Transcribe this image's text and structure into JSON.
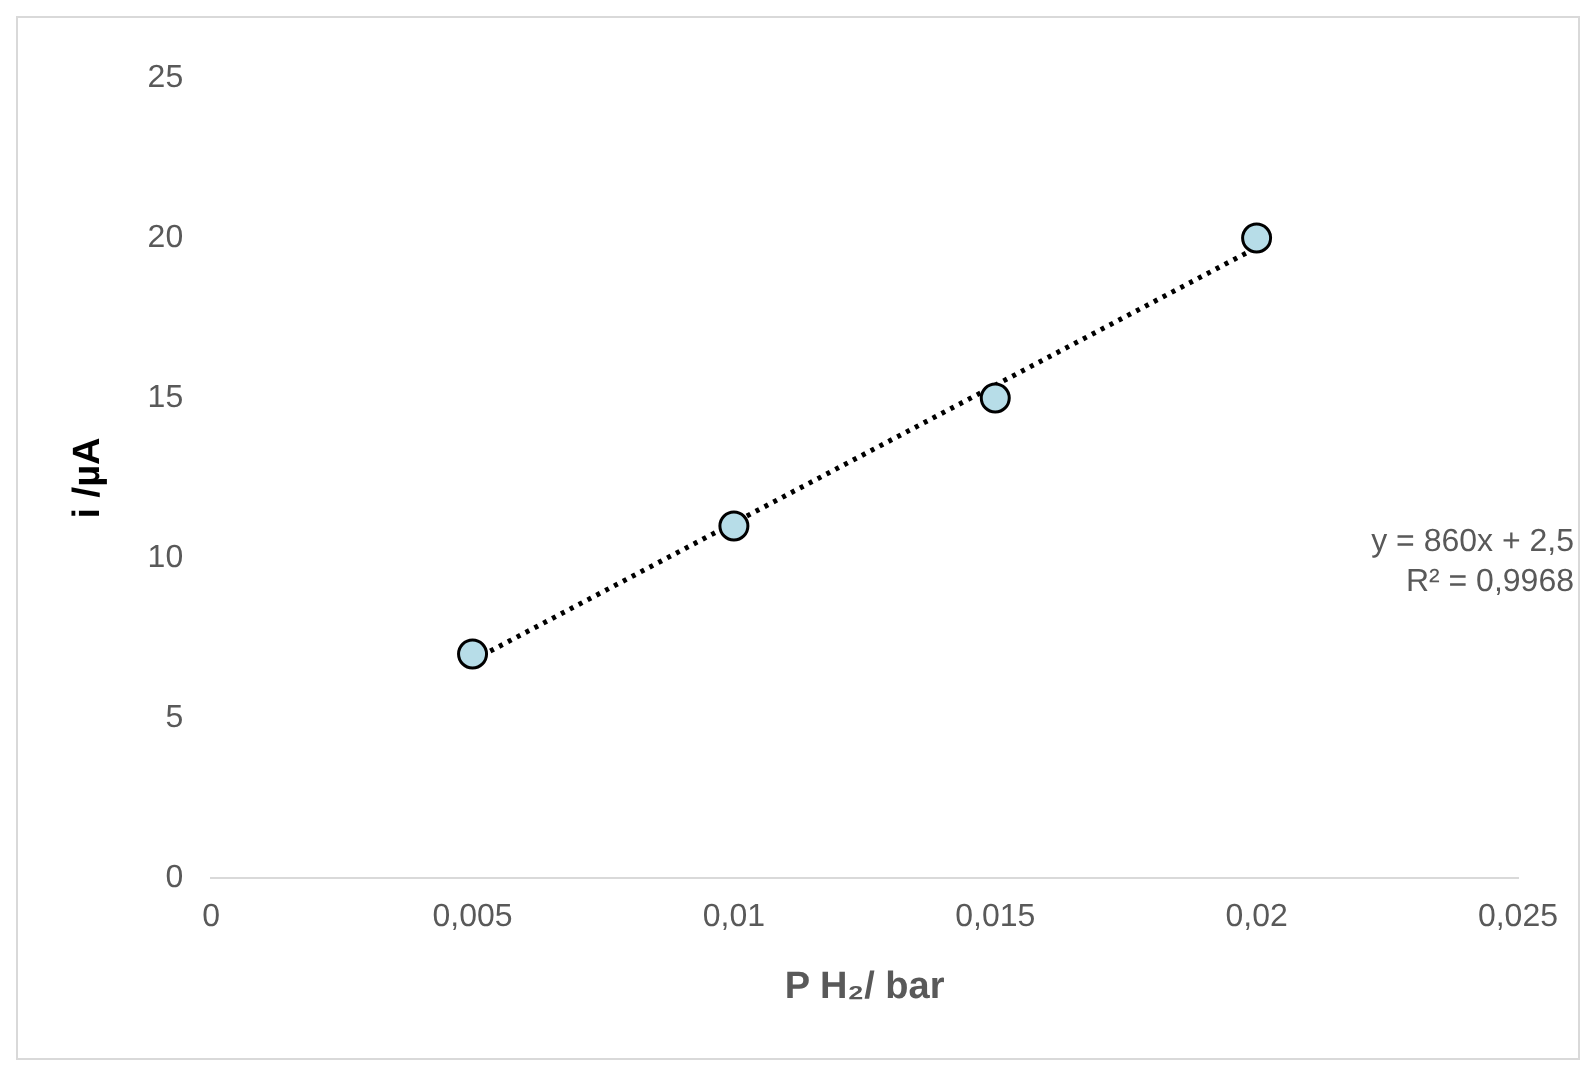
{
  "chart_data": {
    "type": "scatter",
    "xlabel": "P H₂/ bar",
    "ylabel": "i /µA",
    "x": [
      0.005,
      0.01,
      0.015,
      0.02
    ],
    "series": [
      {
        "color": "#b7dde8",
        "values": [
          7,
          11,
          15,
          20
        ],
        "marker": "circle"
      },
      {
        "type": "line",
        "color": "#000000",
        "x": [
          0.005,
          0.02
        ],
        "values": [
          6.8,
          19.7
        ],
        "line_style": "dotted",
        "marker": "none"
      }
    ],
    "xlim": [
      0,
      0.025
    ],
    "xticks": [
      0,
      {
        "value": 0.005,
        "label": "0,005"
      },
      {
        "value": 0.01,
        "label": "0,01"
      },
      {
        "value": 0.015,
        "label": "0,015"
      },
      {
        "value": 0.02,
        "label": "0,02"
      },
      {
        "value": 0.025,
        "label": "0,025"
      }
    ],
    "ylim": [
      0,
      25
    ],
    "yticks": [
      0,
      5,
      10,
      15,
      20,
      25
    ],
    "grid": false,
    "legend": false,
    "annotations": [
      "y = 860x + 2,5",
      "R² = 0,9968"
    ]
  }
}
